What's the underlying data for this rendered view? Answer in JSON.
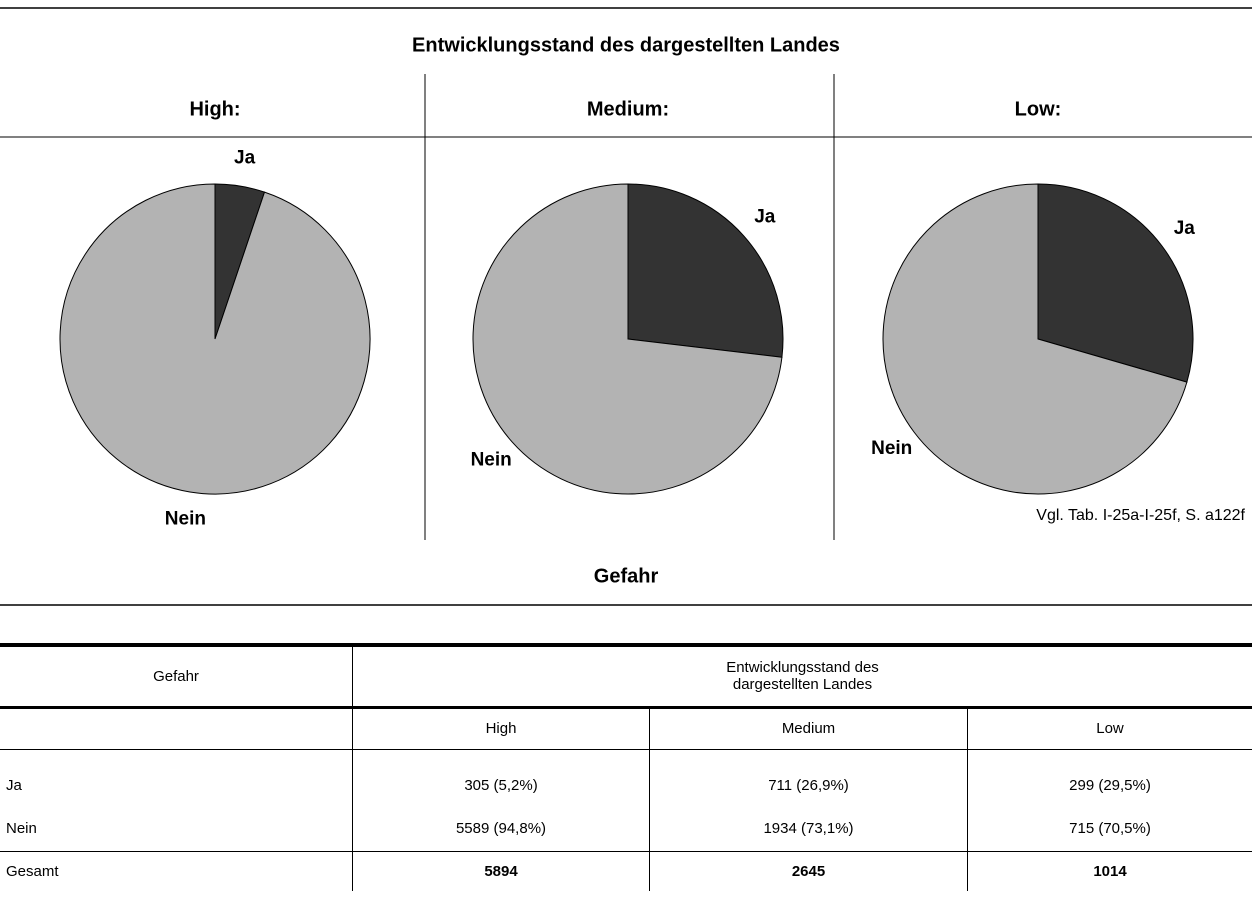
{
  "header": {
    "title": "Entwicklungsstand des dargestellten Landes",
    "footer": "Gefahr",
    "note": "Vgl. Tab. I-25a-I-25f, S. a122f"
  },
  "chart_data": [
    {
      "type": "pie",
      "title": "High:",
      "categories": [
        "Ja",
        "Nein"
      ],
      "values": [
        305,
        5589
      ],
      "colors": [
        "#333333",
        "#b3b3b3"
      ]
    },
    {
      "type": "pie",
      "title": "Medium:",
      "categories": [
        "Ja",
        "Nein"
      ],
      "values": [
        711,
        1934
      ],
      "colors": [
        "#333333",
        "#b3b3b3"
      ]
    },
    {
      "type": "pie",
      "title": "Low:",
      "categories": [
        "Ja",
        "Nein"
      ],
      "values": [
        299,
        715
      ],
      "colors": [
        "#333333",
        "#b3b3b3"
      ]
    }
  ],
  "table": {
    "header": [
      "Gefahr",
      "Entwicklungsstand des dargestellten Landes"
    ],
    "columns": [
      "High",
      "Medium",
      "Low"
    ],
    "rows": [
      [
        "Ja",
        "305 (5,2%)",
        "711 (26,9%)",
        "299 (29,5%)"
      ],
      [
        "Nein",
        "5589 (94,8%)",
        "1934 (73,1%)",
        "715 (70,5%)"
      ],
      [
        "Gesamt",
        "5894",
        "2645",
        "1014"
      ]
    ]
  }
}
